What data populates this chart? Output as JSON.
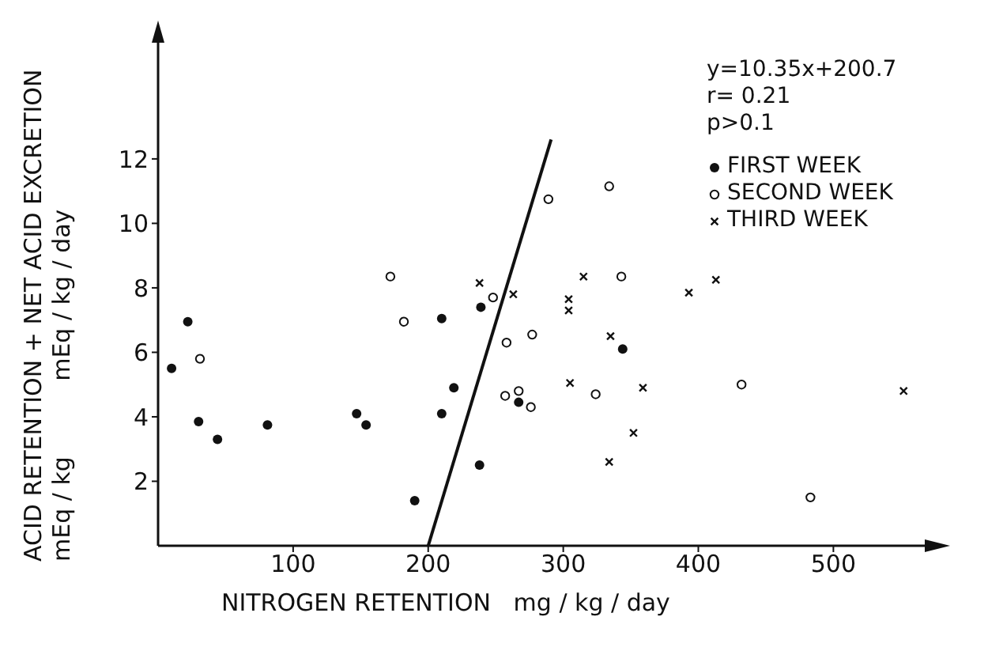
{
  "chart_data": {
    "type": "scatter",
    "xlabel": "NITROGEN RETENTION   mg / kg / day",
    "ylabel": "ACID RETENTION + NET ACID EXCRETION\nmEq / kg          mEq / kg / day",
    "xlim": [
      0,
      570
    ],
    "xticks": [
      100,
      200,
      300,
      400,
      500
    ],
    "ylim": [
      0,
      15.8
    ],
    "yticks": [
      2,
      4,
      6,
      8,
      10,
      12
    ],
    "grid": false,
    "legend": "top right",
    "annotations": [
      "y=10.35x+200.7",
      "r= 0.21",
      "p>0.1"
    ],
    "series": [
      {
        "name": "FIRST WEEK",
        "color": "#111111",
        "marker": "circle",
        "x": [
          10,
          22,
          30,
          44,
          81,
          147,
          154,
          190,
          210,
          219,
          210,
          239,
          238,
          267,
          344
        ],
        "values": [
          5.5,
          6.95,
          3.85,
          3.3,
          3.75,
          4.1,
          3.75,
          1.4,
          7.05,
          4.9,
          4.1,
          7.4,
          2.5,
          4.45,
          6.1
        ]
      },
      {
        "name": "SECOND WEEK",
        "color": "#111111",
        "marker": "circle-open",
        "x": [
          31,
          172,
          182,
          248,
          258,
          277,
          257,
          267,
          276,
          289,
          334,
          343,
          324,
          432,
          483
        ],
        "values": [
          5.8,
          8.35,
          6.95,
          7.7,
          6.3,
          6.55,
          4.65,
          4.8,
          4.3,
          10.75,
          11.15,
          8.35,
          4.7,
          5.0,
          1.5
        ]
      },
      {
        "name": "THIRD WEEK",
        "color": "#111111",
        "marker": "cross",
        "x": [
          238,
          263,
          315,
          304,
          304,
          335,
          305,
          359,
          352,
          334,
          413,
          393,
          552
        ],
        "values": [
          8.15,
          7.8,
          8.35,
          7.65,
          7.3,
          6.5,
          5.05,
          4.9,
          3.5,
          2.6,
          8.25,
          7.85,
          4.8
        ]
      },
      {
        "type": "line",
        "color": "#111111",
        "marker": "none",
        "x": [
          200,
          291
        ],
        "values": [
          0,
          12.6
        ]
      }
    ]
  }
}
